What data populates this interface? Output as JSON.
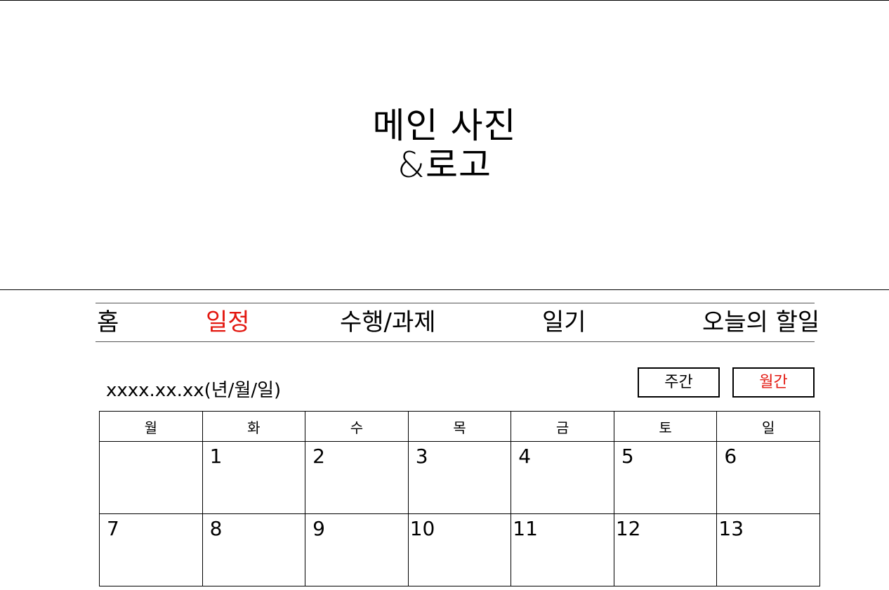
{
  "banner": {
    "line1": "메인 사진",
    "line2": "&로고"
  },
  "nav": {
    "items": [
      {
        "label": "홈",
        "active": false
      },
      {
        "label": "일정",
        "active": true
      },
      {
        "label": "수행/과제",
        "active": false
      },
      {
        "label": "일기",
        "active": false
      },
      {
        "label": "오늘의 할일",
        "active": false
      }
    ],
    "active_color": "#e3170f"
  },
  "date_label": "xxxx.xx.xx(년/월/일)",
  "view_toggle": {
    "weekly": "주간",
    "monthly": "월간",
    "selected": "monthly"
  },
  "calendar": {
    "weekdays": [
      "월",
      "화",
      "수",
      "목",
      "금",
      "토",
      "일"
    ],
    "weeks": [
      [
        "",
        "1",
        "2",
        "3",
        "4",
        "5",
        "6"
      ],
      [
        "7",
        "8",
        "9",
        "10",
        "11",
        "12",
        "13"
      ]
    ]
  }
}
